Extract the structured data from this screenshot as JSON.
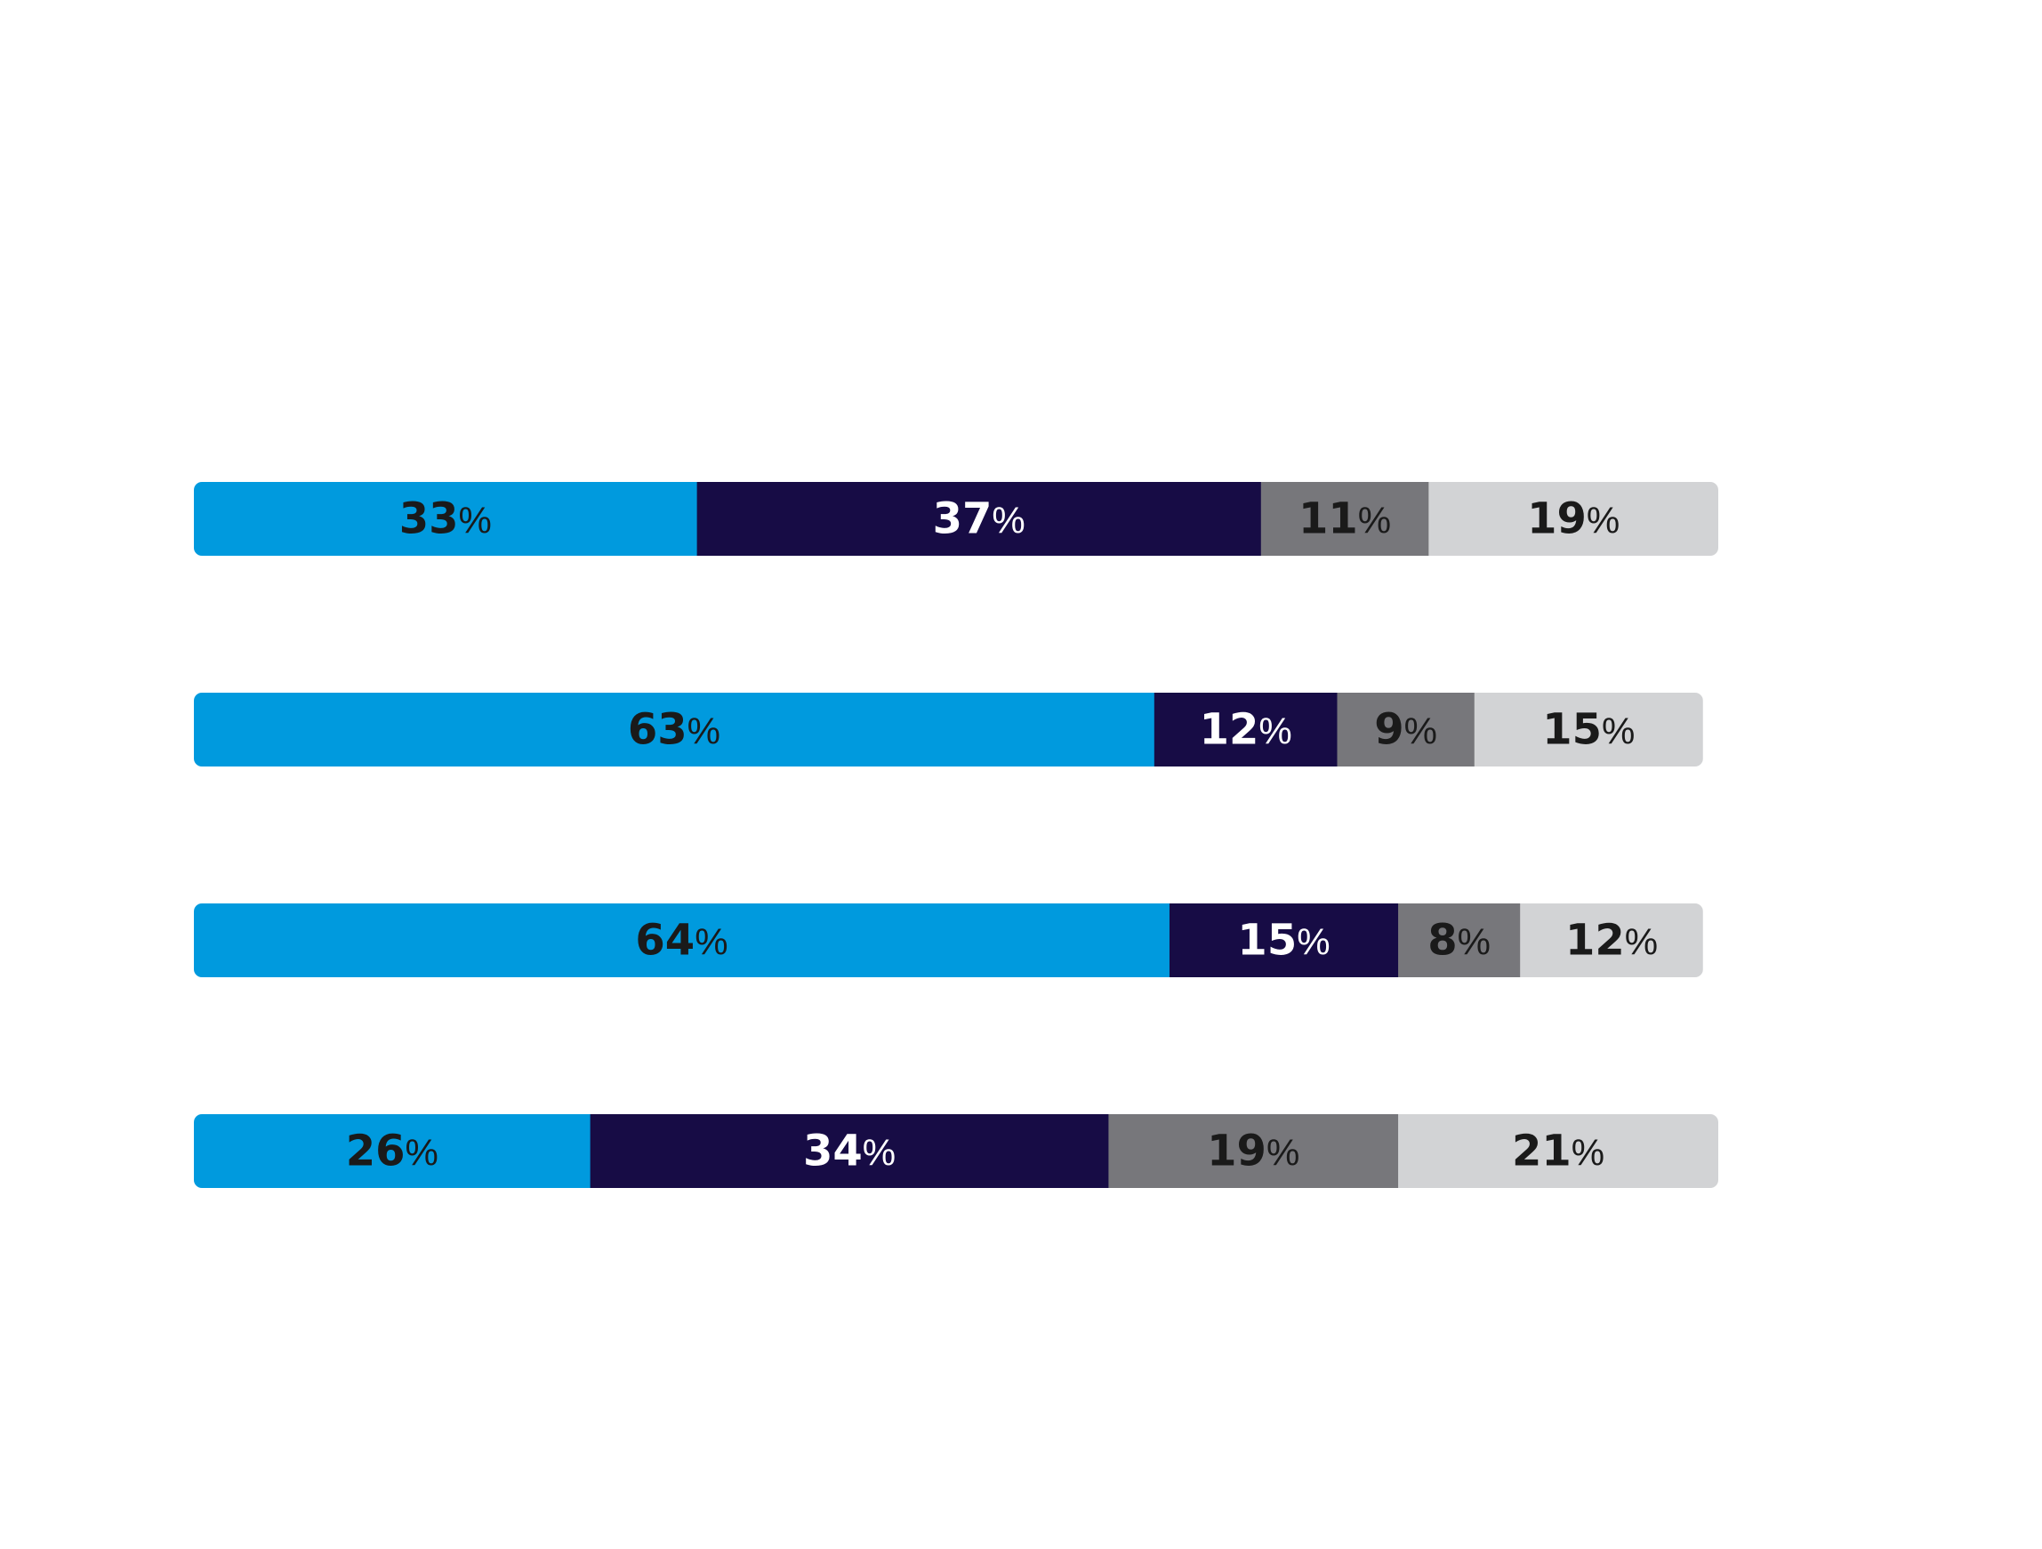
{
  "chart_data": {
    "type": "bar",
    "orientation": "horizontal",
    "stacked": true,
    "title": "",
    "xlabel": "",
    "ylabel": "",
    "categories": [
      "",
      "",
      "",
      ""
    ],
    "series": [
      {
        "name": "",
        "color": "#009ade",
        "text_color": "#1a1a1a",
        "values": [
          33,
          63,
          64,
          26
        ]
      },
      {
        "name": "",
        "color": "#170c45",
        "text_color": "#ffffff",
        "values": [
          37,
          12,
          15,
          34
        ]
      },
      {
        "name": "",
        "color": "#77777b",
        "text_color": "#1a1a1a",
        "values": [
          11,
          9,
          8,
          19
        ]
      },
      {
        "name": "",
        "color": "#d2d3d5",
        "text_color": "#1a1a1a",
        "values": [
          19,
          15,
          12,
          21
        ]
      }
    ],
    "label_suffix": "%",
    "grid": false,
    "legend": "none"
  }
}
